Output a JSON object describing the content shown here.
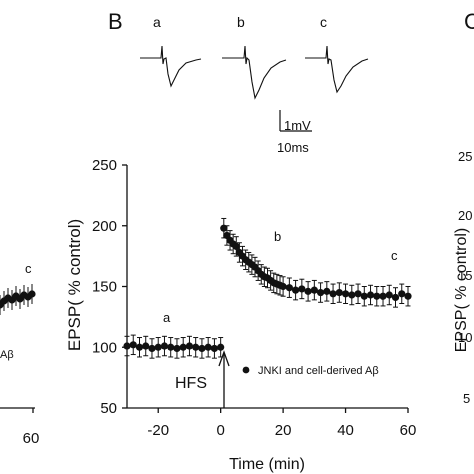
{
  "panels": {
    "left": {
      "ticks": [
        "60"
      ],
      "marker": "c",
      "legend_fragment": "Aβ"
    },
    "middle": {
      "letter": "B",
      "trace_labels": [
        "a",
        "b",
        "c"
      ],
      "scalebar": {
        "voltage": "1mV",
        "time": "10ms"
      },
      "annotations": {
        "a": "a",
        "b": "b",
        "c": "c",
        "hfs": "HFS"
      }
    },
    "right": {
      "letter": "C",
      "ylabel": "EPSP( % control)",
      "ticks": [
        "25",
        "20",
        "15",
        "10",
        "5"
      ]
    }
  },
  "chart_data": {
    "type": "scatter",
    "title": "",
    "xlabel": "Time (min)",
    "ylabel": "EPSP( % control)",
    "xlim": [
      -30,
      60
    ],
    "ylim": [
      50,
      250
    ],
    "xticks": [
      "-20",
      "0",
      "20",
      "40",
      "60"
    ],
    "yticks": [
      "50",
      "100",
      "150",
      "200",
      "250"
    ],
    "legend": {
      "label": "JNKI and cell-derived Aβ",
      "placement": "center-right"
    },
    "series": [
      {
        "name": "JNKI and cell-derived Aβ",
        "color": "#111111",
        "error": 8,
        "x": [
          -30,
          -28,
          -26,
          -24,
          -22,
          -20,
          -18,
          -16,
          -14,
          -12,
          -10,
          -8,
          -6,
          -4,
          -2,
          0,
          1,
          2,
          3,
          4,
          5,
          6,
          7,
          8,
          9,
          10,
          11,
          12,
          13,
          14,
          15,
          16,
          17,
          18,
          19,
          20,
          22,
          24,
          26,
          28,
          30,
          32,
          34,
          36,
          38,
          40,
          42,
          44,
          46,
          48,
          50,
          52,
          54,
          56,
          58,
          60
        ],
        "y": [
          101,
          102,
          100,
          101,
          99,
          100,
          101,
          100,
          99,
          100,
          101,
          100,
          99,
          100,
          99,
          100,
          198,
          192,
          188,
          185,
          183,
          178,
          175,
          172,
          170,
          168,
          166,
          163,
          160,
          158,
          157,
          155,
          153,
          152,
          151,
          150,
          149,
          147,
          148,
          146,
          147,
          145,
          146,
          144,
          145,
          144,
          143,
          144,
          142,
          143,
          142,
          142,
          143,
          141,
          144,
          142
        ]
      }
    ]
  }
}
